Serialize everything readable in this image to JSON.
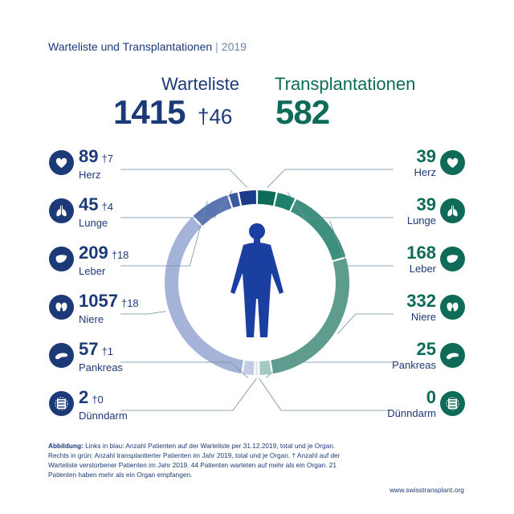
{
  "title": {
    "main": "Warteliste und Transplantationen",
    "separator": "|",
    "year": "2019"
  },
  "header": {
    "waitlist_label": "Warteliste",
    "waitlist_total": "1415",
    "waitlist_deaths": "46",
    "transplant_label": "Transplantationen",
    "transplant_total": "582"
  },
  "dagger": "†",
  "organs": [
    {
      "name": "Herz",
      "icon": "heart-icon",
      "wait": "89",
      "deaths": "7",
      "transplants": "39"
    },
    {
      "name": "Lunge",
      "icon": "lung-icon",
      "wait": "45",
      "deaths": "4",
      "transplants": "39"
    },
    {
      "name": "Leber",
      "icon": "liver-icon",
      "wait": "209",
      "deaths": "18",
      "transplants": "168"
    },
    {
      "name": "Niere",
      "icon": "kidney-icon",
      "wait": "1057",
      "deaths": "18",
      "transplants": "332"
    },
    {
      "name": "Pankreas",
      "icon": "pancreas-icon",
      "wait": "57",
      "deaths": "1",
      "transplants": "25"
    },
    {
      "name": "Dünndarm",
      "icon": "intestine-icon",
      "wait": "2",
      "deaths": "0",
      "transplants": "0"
    }
  ],
  "chart_data": {
    "type": "pie",
    "categories": [
      "Herz",
      "Lunge",
      "Leber",
      "Niere",
      "Pankreas",
      "Dünndarm"
    ],
    "series": [
      {
        "name": "Warteliste",
        "values": [
          89,
          45,
          209,
          1057,
          57,
          2
        ]
      },
      {
        "name": "Transplantationen",
        "values": [
          39,
          39,
          168,
          332,
          25,
          0
        ]
      }
    ],
    "waitlist_deaths": [
      7,
      4,
      18,
      18,
      1,
      0
    ],
    "colors": {
      "waitlist": [
        "#1c3a8a",
        "#3a58a2",
        "#5a74b4",
        "#a6b3d8",
        "#c3cce5",
        "#d8deee"
      ],
      "transplant": [
        "#0d6b57",
        "#1f7f6a",
        "#3f8f7e",
        "#5e9d8e",
        "#a4c9bf",
        "#d5e6e1"
      ],
      "connector": "#6e8fa0",
      "figure": "#1a3fa0"
    }
  },
  "caption": {
    "label": "Abbildung:",
    "text": "Links in blau: Anzahl Patienten auf der Warteliste per 31.12.2019, total und je Organ. Rechts in grün: Anzahl transplantierter Patienten im Jahr 2019, total und je Organ. † Anzahl auf der Warteliste verstorbener Patienten im Jahr 2019. 44 Patienten warteten auf mehr als ein Organ. 21 Patienten haben mehr als ein Organ empfangen."
  },
  "url": "www.swisstransplant.org"
}
